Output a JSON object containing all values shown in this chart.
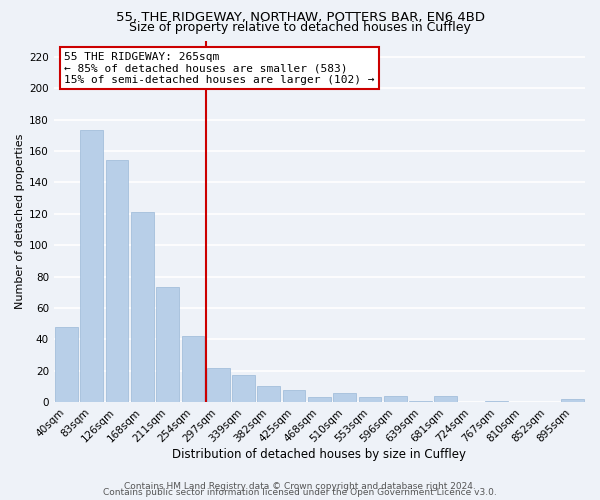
{
  "title_line1": "55, THE RIDGEWAY, NORTHAW, POTTERS BAR, EN6 4BD",
  "title_line2": "Size of property relative to detached houses in Cuffley",
  "xlabel": "Distribution of detached houses by size in Cuffley",
  "ylabel": "Number of detached properties",
  "bar_labels": [
    "40sqm",
    "83sqm",
    "126sqm",
    "168sqm",
    "211sqm",
    "254sqm",
    "297sqm",
    "339sqm",
    "382sqm",
    "425sqm",
    "468sqm",
    "510sqm",
    "553sqm",
    "596sqm",
    "639sqm",
    "681sqm",
    "724sqm",
    "767sqm",
    "810sqm",
    "852sqm",
    "895sqm"
  ],
  "bar_values": [
    48,
    173,
    154,
    121,
    73,
    42,
    22,
    17,
    10,
    8,
    3,
    6,
    3,
    4,
    1,
    4,
    0,
    1,
    0,
    0,
    2
  ],
  "bar_color": "#b8cfe8",
  "bar_edge_color": "#9ab8d8",
  "vline_x": 5.5,
  "vline_color": "#cc0000",
  "annotation_text": "55 THE RIDGEWAY: 265sqm\n← 85% of detached houses are smaller (583)\n15% of semi-detached houses are larger (102) →",
  "annotation_box_color": "white",
  "annotation_box_edge_color": "#cc0000",
  "ylim": [
    0,
    230
  ],
  "yticks": [
    0,
    20,
    40,
    60,
    80,
    100,
    120,
    140,
    160,
    180,
    200,
    220
  ],
  "footer_line1": "Contains HM Land Registry data © Crown copyright and database right 2024.",
  "footer_line2": "Contains public sector information licensed under the Open Government Licence v3.0.",
  "background_color": "#eef2f8",
  "grid_color": "white",
  "title_fontsize": 9.5,
  "subtitle_fontsize": 9,
  "xlabel_fontsize": 8.5,
  "ylabel_fontsize": 8,
  "tick_fontsize": 7.5,
  "annot_fontsize": 8,
  "footer_fontsize": 6.5
}
